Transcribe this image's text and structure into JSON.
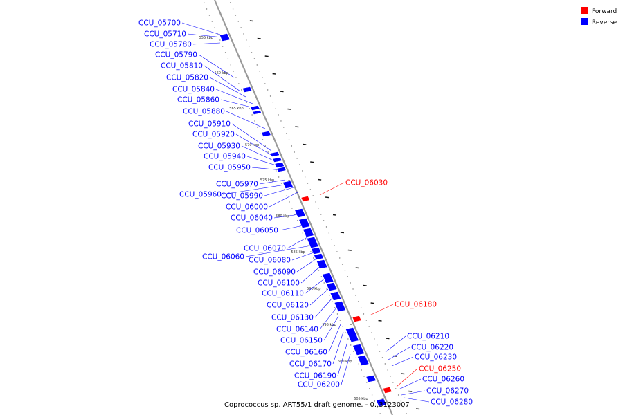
{
  "caption": "Coprococcus sp. ART55/1 draft genome. - 0..3123007",
  "legend": [
    {
      "label": "Forward",
      "color": "#ff0000"
    },
    {
      "label": "Reverse",
      "color": "#0000ff"
    }
  ],
  "ticks": [
    "555 kbp",
    "560 kbp",
    "565 kbp",
    "570 kbp",
    "575 kbp",
    "580 kbp",
    "585 kbp",
    "590 kbp",
    "595 kbp",
    "600 kbp",
    "605 kbp"
  ],
  "genes_reverse": [
    "CCU_05700",
    "CCU_05710",
    "CCU_05780",
    "CCU_05790",
    "CCU_05810",
    "CCU_05820",
    "CCU_05840",
    "CCU_05860",
    "CCU_05880",
    "CCU_05910",
    "CCU_05920",
    "CCU_05930",
    "CCU_05940",
    "CCU_05950",
    "CCU_05970",
    "CCU_05960",
    "CCU_05990",
    "CCU_06000",
    "CCU_06040",
    "CCU_06050",
    "CCU_06070",
    "CCU_06060",
    "CCU_06080",
    "CCU_06090",
    "CCU_06100",
    "CCU_06110",
    "CCU_06120",
    "CCU_06130",
    "CCU_06140",
    "CCU_06150",
    "CCU_06160",
    "CCU_06170",
    "CCU_06190",
    "CCU_06200"
  ],
  "genes_right": [
    "CCU_06030",
    "CCU_06180",
    "CCU_06210",
    "CCU_06220",
    "CCU_06230",
    "CCU_06250",
    "CCU_06260",
    "CCU_06270",
    "CCU_06280"
  ],
  "strand_colors": {
    "forward": "#ff0000",
    "reverse": "#0000ff"
  }
}
